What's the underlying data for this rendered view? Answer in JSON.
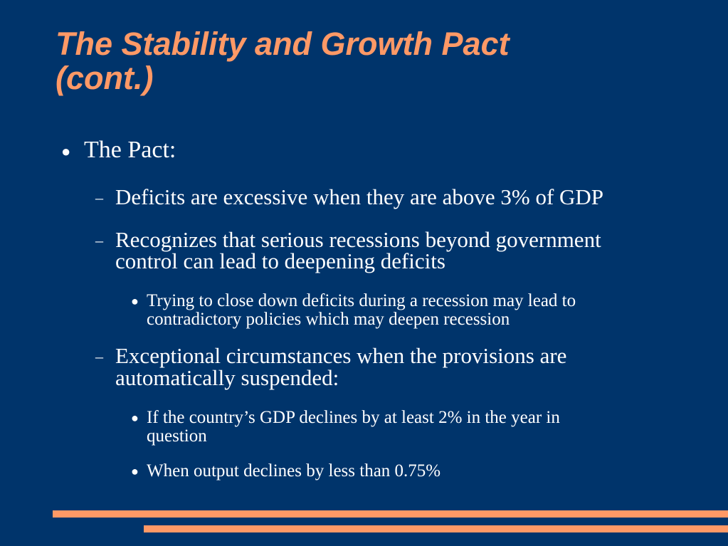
{
  "slide": {
    "title_lines": [
      "The Stability and Growth Pact",
      "(cont.)"
    ],
    "bullets": [
      {
        "level": 1,
        "marker": "●",
        "text": "The Pact:"
      },
      {
        "level": 2,
        "marker": "–",
        "text": "Deficits are excessive when they are above 3% of GDP"
      },
      {
        "level": 2,
        "marker": "–",
        "lines": [
          "Recognizes that serious recessions beyond government",
          "control can lead to deepening deficits"
        ]
      },
      {
        "level": 3,
        "marker": "●",
        "lines": [
          "Trying to close down deficits during a recession may lead to",
          "contradictory policies which may deepen recession"
        ]
      },
      {
        "level": 2,
        "marker": "–",
        "lines": [
          "Exceptional circumstances when the provisions are",
          "automatically suspended:"
        ]
      },
      {
        "level": 3,
        "marker": "●",
        "lines": [
          "If the country’s GDP declines by at least 2% in the year in",
          "question"
        ]
      },
      {
        "level": 3,
        "marker": "●",
        "text": "When output declines by less than 0.75%"
      }
    ]
  },
  "colors": {
    "background": "#00346b",
    "title": "#ff9966",
    "body_text": "#ffffff",
    "accent_bars": "#ff9966"
  }
}
